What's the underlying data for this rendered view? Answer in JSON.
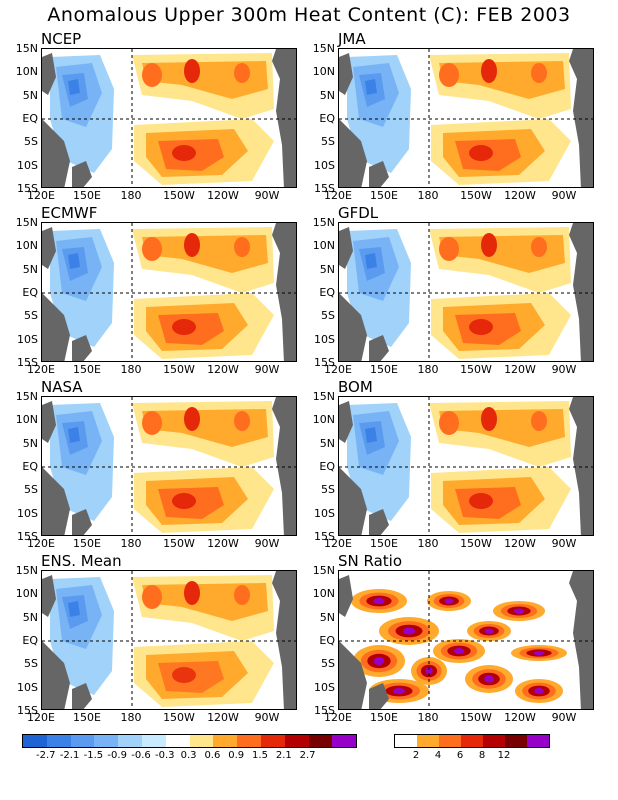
{
  "title": "Anomalous Upper 300m Heat Content (C): FEB 2003",
  "lat_labels": [
    "15N",
    "10N",
    "5N",
    "EQ",
    "5S",
    "10S",
    "15S"
  ],
  "lon_labels": [
    "120E",
    "150E",
    "180",
    "150W",
    "120W",
    "90W"
  ],
  "panels": [
    {
      "name": "NCEP"
    },
    {
      "name": "JMA"
    },
    {
      "name": "ECMWF"
    },
    {
      "name": "GFDL"
    },
    {
      "name": "NASA"
    },
    {
      "name": "BOM"
    },
    {
      "name": "ENS. Mean"
    },
    {
      "name": "SN Ratio"
    }
  ],
  "anomaly_scale": {
    "labels": [
      "-2.7",
      "-2.1",
      "-1.5",
      "-0.9",
      "-0.6",
      "-0.3",
      "0.3",
      "0.6",
      "0.9",
      "1.5",
      "2.1",
      "2.7"
    ],
    "colors": [
      "#1e64d2",
      "#3c82e6",
      "#5a9bf0",
      "#78b4f5",
      "#a0d2fa",
      "#c8ebff",
      "#ffffff",
      "#ffe68c",
      "#ffaa2d",
      "#ff6e1e",
      "#e6280a",
      "#b40000",
      "#780000",
      "#9600c8"
    ]
  },
  "snr_scale": {
    "labels": [
      "2",
      "4",
      "6",
      "8",
      "12"
    ],
    "colors": [
      "#ffffff",
      "#ffaa2d",
      "#ff6e1e",
      "#e6280a",
      "#b40000",
      "#780000",
      "#9600c8"
    ]
  },
  "land_color": "#666666"
}
